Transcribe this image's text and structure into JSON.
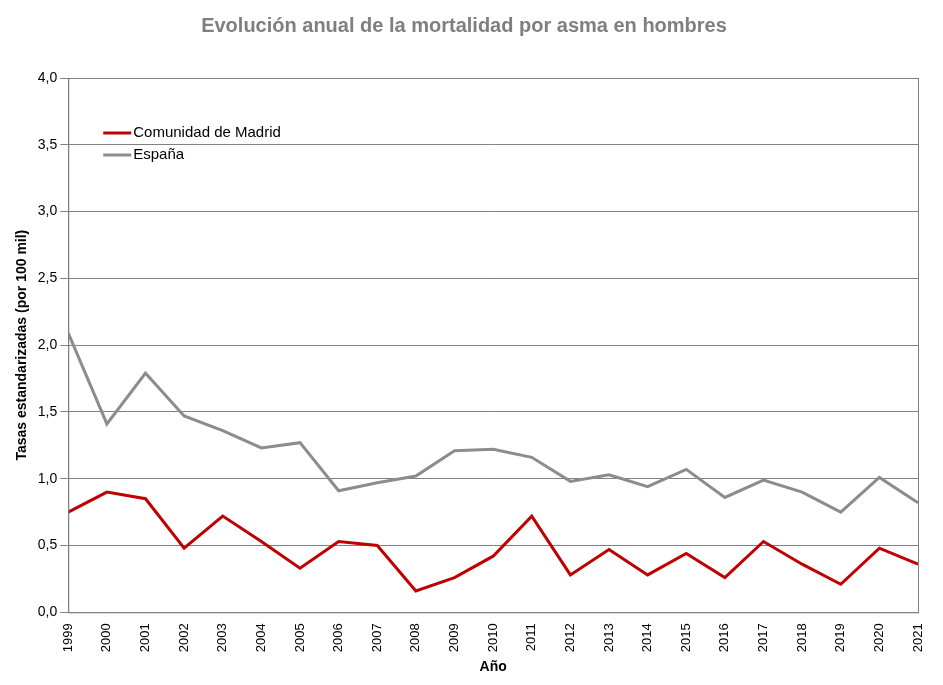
{
  "chart_data": {
    "type": "line",
    "title": "Evolución anual de la mortalidad por asma en hombres",
    "x_label": "Año",
    "y_label": "Tasas estandarizadas (por 100 mil)",
    "categories": [
      "1999",
      "2000",
      "2001",
      "2002",
      "2003",
      "2004",
      "2005",
      "2006",
      "2007",
      "2008",
      "2009",
      "2010",
      "2011",
      "2012",
      "2013",
      "2014",
      "2015",
      "2016",
      "2017",
      "2018",
      "2019",
      "2020",
      "2021"
    ],
    "series": [
      {
        "name": "Comunidad de Madrid",
        "color": "#c00000",
        "values": [
          0.75,
          0.9,
          0.85,
          0.48,
          0.72,
          0.53,
          0.33,
          0.53,
          0.5,
          0.16,
          0.26,
          0.42,
          0.72,
          0.28,
          0.47,
          0.28,
          0.44,
          0.26,
          0.53,
          0.36,
          0.21,
          0.48,
          0.36
        ]
      },
      {
        "name": "España",
        "color": "#8c8c8c",
        "values": [
          2.09,
          1.41,
          1.79,
          1.47,
          1.36,
          1.23,
          1.27,
          0.91,
          0.97,
          1.02,
          1.21,
          1.22,
          1.16,
          0.98,
          1.03,
          0.94,
          1.07,
          0.86,
          0.99,
          0.9,
          0.75,
          1.01,
          0.82
        ]
      }
    ],
    "ylim": [
      0,
      4
    ],
    "yticks": [
      {
        "value": 0,
        "label": "0,0"
      },
      {
        "value": 0.5,
        "label": "0,5"
      },
      {
        "value": 1,
        "label": "1,0"
      },
      {
        "value": 1.5,
        "label": "1,5"
      },
      {
        "value": 2,
        "label": "2,0"
      },
      {
        "value": 2.5,
        "label": "2,5"
      },
      {
        "value": 3,
        "label": "3,0"
      },
      {
        "value": 3.5,
        "label": "3,5"
      },
      {
        "value": 4,
        "label": "4,0"
      }
    ],
    "grid": true,
    "legend": "upper left"
  }
}
